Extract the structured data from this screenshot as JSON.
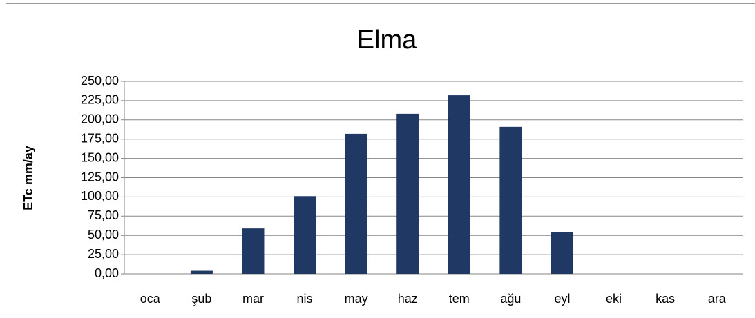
{
  "chart_data": {
    "type": "bar",
    "title": "Elma",
    "y_label": "ETc mm/ay",
    "categories": [
      "oca",
      "şub",
      "mar",
      "nis",
      "may",
      "haz",
      "tem",
      "ağu",
      "eyl",
      "eki",
      "kas",
      "ara"
    ],
    "values": [
      0,
      4,
      59,
      101,
      182,
      208,
      232,
      191,
      54,
      0,
      0,
      0
    ],
    "color": "#203864",
    "ylim": [
      0,
      250
    ],
    "yticks": [
      {
        "value": 0,
        "label": "0,00"
      },
      {
        "value": 25,
        "label": "25,00"
      },
      {
        "value": 50,
        "label": "50,00"
      },
      {
        "value": 75,
        "label": "75,00"
      },
      {
        "value": 100,
        "label": "100,00"
      },
      {
        "value": 125,
        "label": "125,00"
      },
      {
        "value": 150,
        "label": "150,00"
      },
      {
        "value": 175,
        "label": "175,00"
      },
      {
        "value": 200,
        "label": "200,00"
      },
      {
        "value": 225,
        "label": "225,00"
      },
      {
        "value": 250,
        "label": "250,00"
      }
    ],
    "grid": true
  }
}
